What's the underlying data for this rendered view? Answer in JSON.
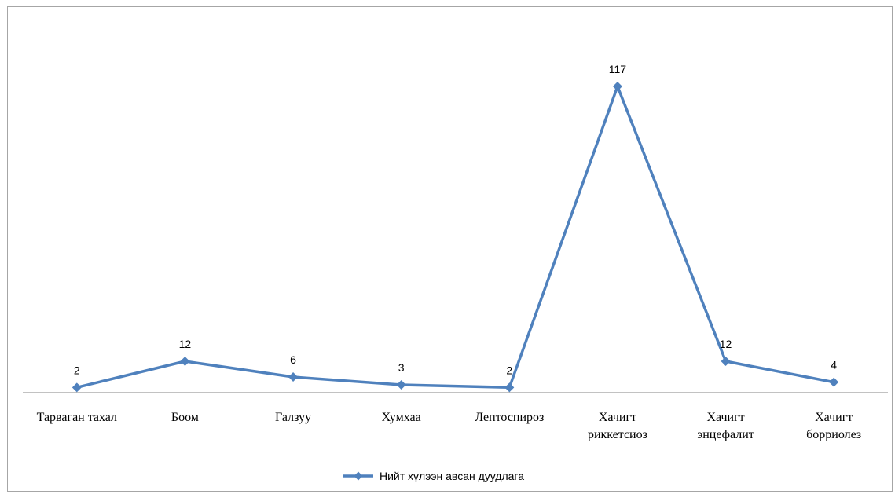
{
  "chart_data": {
    "type": "line",
    "categories": [
      [
        "Тарваган тахал"
      ],
      [
        "Боом"
      ],
      [
        "Галзуу"
      ],
      [
        "Хумхаа"
      ],
      [
        "Лептоспироз"
      ],
      [
        "Хачигт",
        "риккетсиоз"
      ],
      [
        "Хачигт",
        "энцефалит"
      ],
      [
        "Хачигт",
        "борриолез"
      ]
    ],
    "series": [
      {
        "name": "Нийт хүлээн авсан  дуудлага",
        "values": [
          2,
          12,
          6,
          3,
          2,
          117,
          12,
          4
        ],
        "color": "#4f81bd",
        "marker": "diamond"
      }
    ],
    "data_labels": [
      "2",
      "12",
      "6",
      "3",
      "2",
      "117",
      "12",
      "4"
    ],
    "ylim": [
      0,
      120
    ],
    "grid": false,
    "legend": "bottom"
  }
}
